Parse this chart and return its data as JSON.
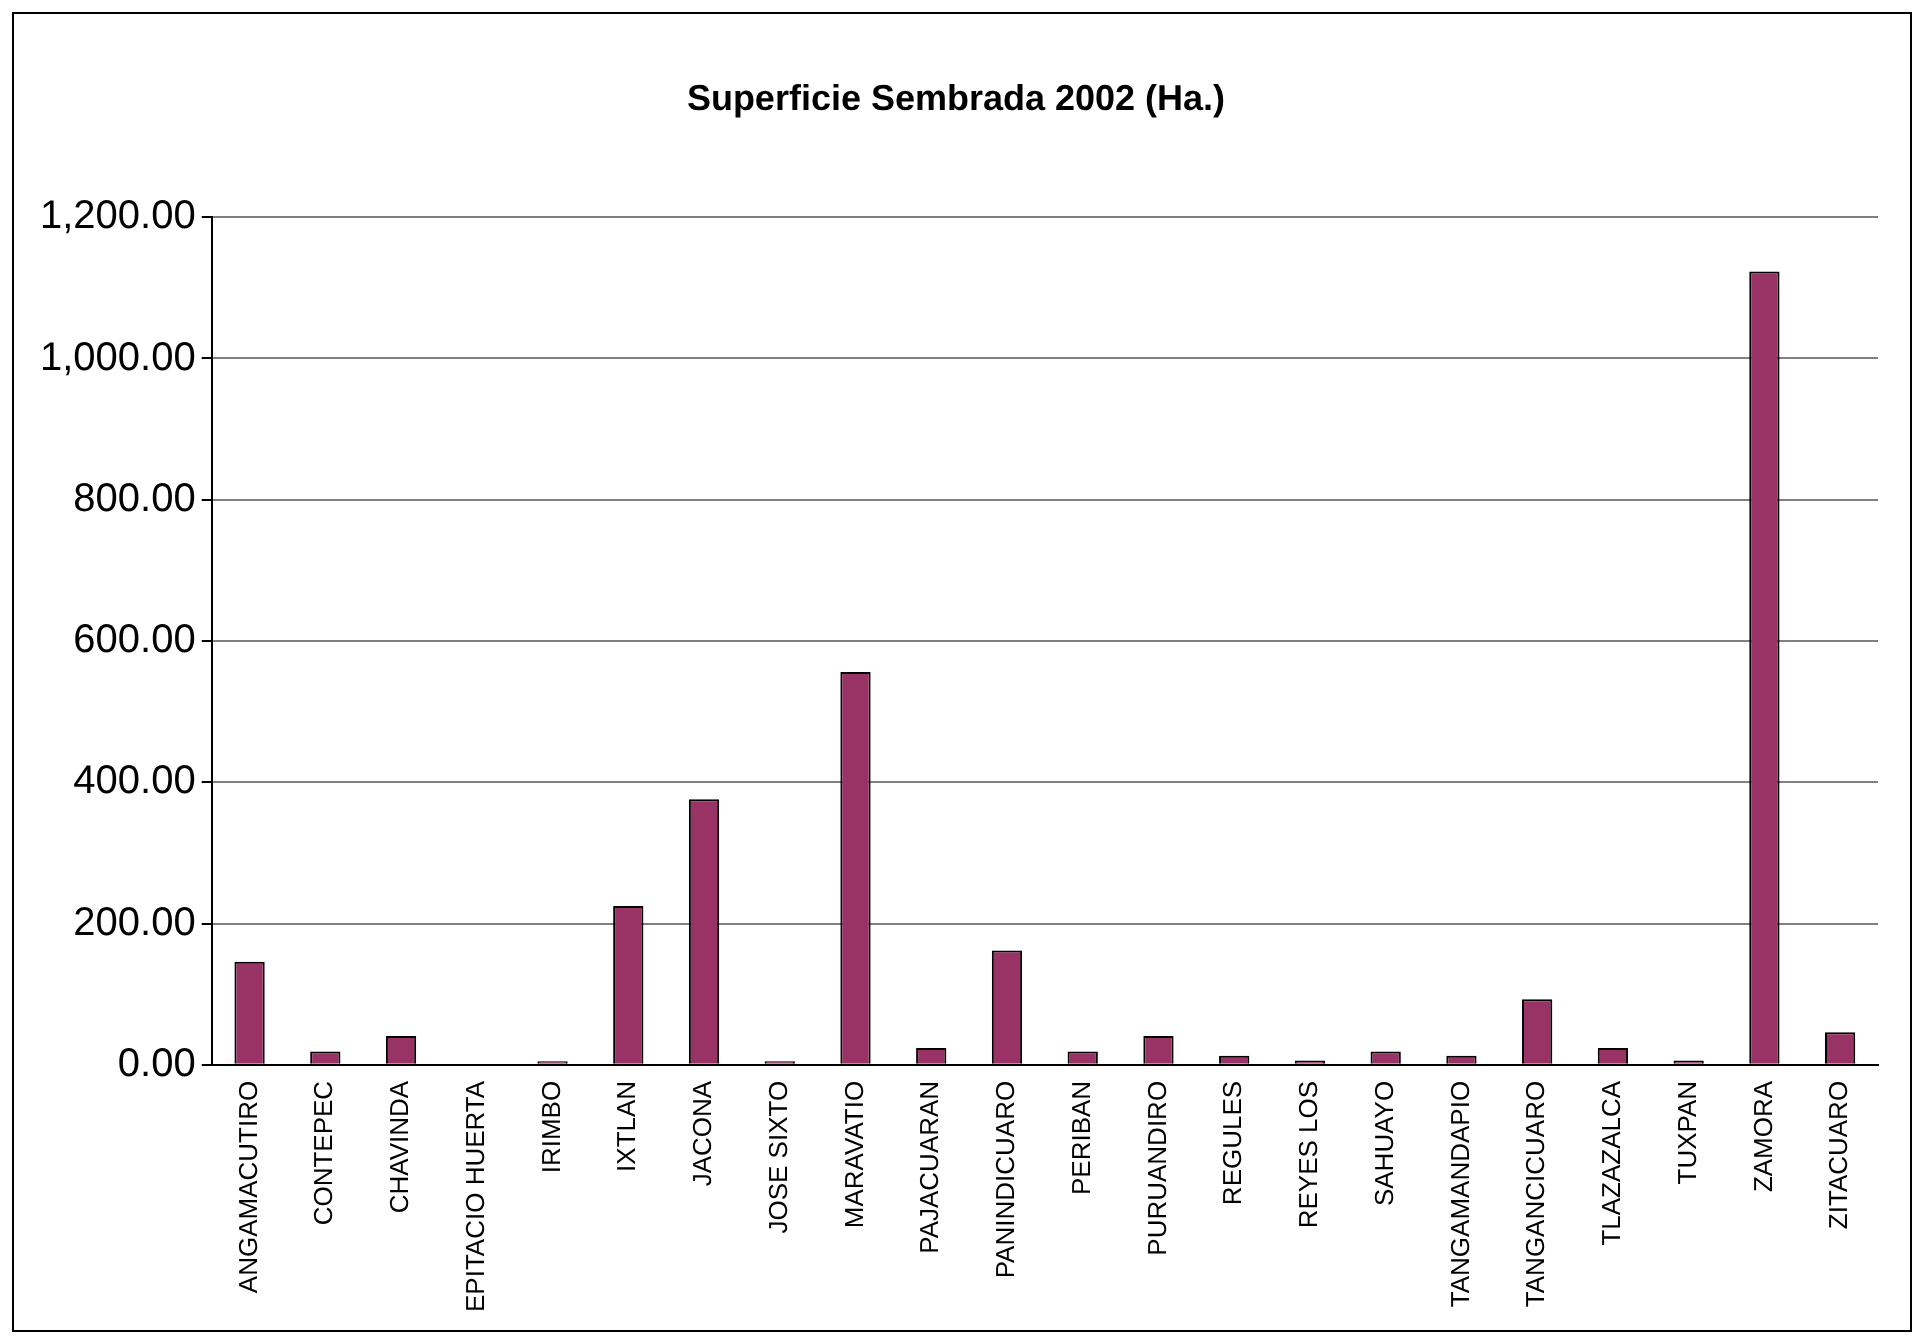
{
  "chart_data": {
    "type": "bar",
    "title": "Superficie Sembrada 2002 (Ha.)",
    "categories": [
      "ANGAMACUTIRO",
      "CONTEPEC",
      "CHAVINDA",
      "EPITACIO HUERTA",
      "IRIMBO",
      "IXTLAN",
      "JACONA",
      "JOSE SIXTO",
      "MARAVATIO",
      "PAJACUARAN",
      "PANINDICUARO",
      "PERIBAN",
      "PURUANDIRO",
      "REGULES",
      "REYES LOS",
      "SAHUAYO",
      "TANGAMANDAPIO",
      "TANGANCICUARO",
      "TLAZAZALCA",
      "TUXPAN",
      "ZAMORA",
      "ZITACUARO"
    ],
    "values": [
      146,
      19,
      41,
      0,
      5,
      225,
      376,
      5,
      556,
      24,
      162,
      19,
      41,
      13,
      6,
      19,
      13,
      93,
      24,
      6,
      1123,
      46
    ],
    "color": "#993366",
    "ylim": [
      0,
      1200
    ],
    "yticks": [
      {
        "value": 0,
        "label": "0.00"
      },
      {
        "value": 200,
        "label": "200.00"
      },
      {
        "value": 400,
        "label": "400.00"
      },
      {
        "value": 600,
        "label": "600.00"
      },
      {
        "value": 800,
        "label": "800.00"
      },
      {
        "value": 1000,
        "label": "1,000.00"
      },
      {
        "value": 1200,
        "label": "1,200.00"
      }
    ],
    "grid": "y",
    "legend": false
  }
}
